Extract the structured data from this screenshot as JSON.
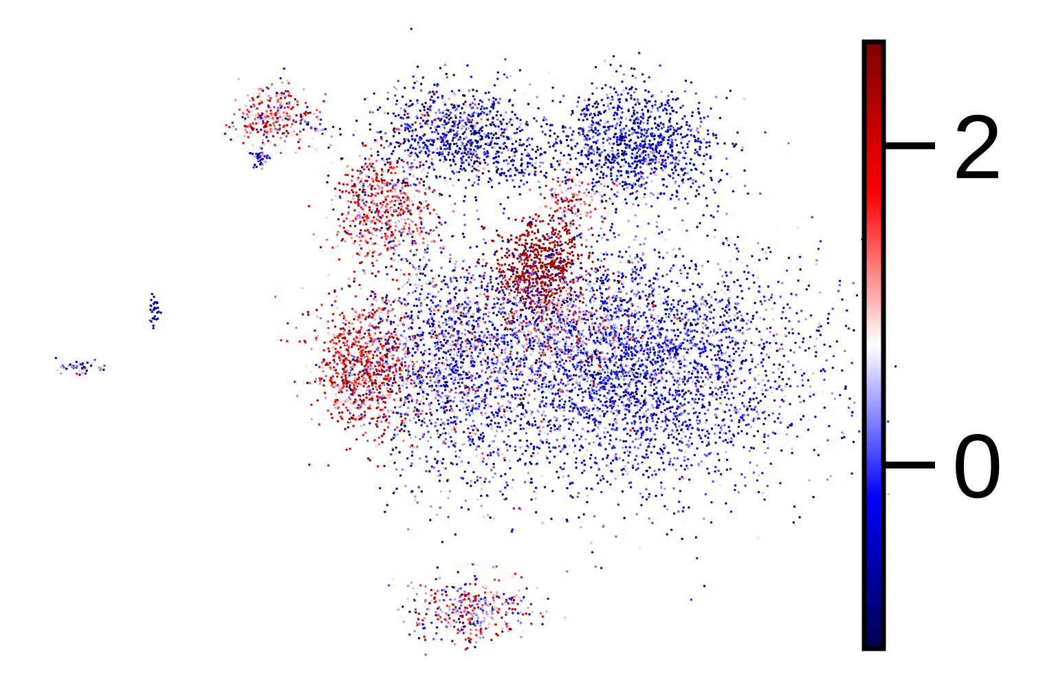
{
  "chart_data": {
    "type": "scatter",
    "title": "",
    "xlabel": "",
    "ylabel": "",
    "axes_visible": false,
    "grid": false,
    "colormap": "seismic",
    "colormap_stops": [
      "#00004c",
      "#0000ff",
      "#ffffff",
      "#ff0000",
      "#7f0000"
    ],
    "color_range": [
      -1.15,
      2.65
    ],
    "colorbar": {
      "position": "right",
      "ticks": [
        0,
        2
      ],
      "tick_labels": [
        "0",
        "2"
      ]
    },
    "clusters": [
      {
        "id": "top-left-island",
        "center": [
          -8.9,
          6.9
        ],
        "spread": [
          0.55,
          0.35
        ],
        "n": 320,
        "mean": 1.2,
        "sd": 0.9
      },
      {
        "id": "top-left-tail",
        "center": [
          -7.6,
          6.6
        ],
        "spread": [
          0.5,
          0.12
        ],
        "n": 40,
        "mean": 0.6,
        "sd": 0.9
      },
      {
        "id": "top-left-sub",
        "center": [
          -9.3,
          6.0
        ],
        "spread": [
          0.15,
          0.12
        ],
        "n": 45,
        "mean": -0.2,
        "sd": 0.6
      },
      {
        "id": "top-middle-upper",
        "center": [
          -3.3,
          6.5
        ],
        "spread": [
          1.2,
          0.55
        ],
        "n": 900,
        "mean": -0.3,
        "sd": 0.9
      },
      {
        "id": "top-middle-lower",
        "center": [
          -5.5,
          4.9
        ],
        "spread": [
          0.75,
          0.55
        ],
        "n": 650,
        "mean": 1.4,
        "sd": 0.9
      },
      {
        "id": "top-middle-bridge",
        "center": [
          -1.4,
          5.9
        ],
        "spread": [
          0.6,
          0.25
        ],
        "n": 80,
        "mean": -0.6,
        "sd": 0.5
      },
      {
        "id": "top-right",
        "center": [
          2.3,
          6.3
        ],
        "spread": [
          1.3,
          0.6
        ],
        "n": 1100,
        "mean": -0.4,
        "sd": 0.6
      },
      {
        "id": "top-right-arm",
        "center": [
          0.4,
          5.1
        ],
        "spread": [
          0.55,
          0.3
        ],
        "n": 150,
        "mean": 1.3,
        "sd": 0.8
      },
      {
        "id": "bright-center",
        "center": [
          -0.6,
          3.6
        ],
        "spread": [
          0.75,
          0.55
        ],
        "n": 700,
        "mean": 2.5,
        "sd": 0.35
      },
      {
        "id": "main-left",
        "center": [
          -6.0,
          1.6
        ],
        "spread": [
          0.75,
          0.75
        ],
        "n": 900,
        "mean": 1.8,
        "sd": 0.8
      },
      {
        "id": "main-center",
        "center": [
          -3.3,
          1.6
        ],
        "spread": [
          1.3,
          1.3
        ],
        "n": 1700,
        "mean": 0.1,
        "sd": 0.8
      },
      {
        "id": "main-right",
        "center": [
          2.4,
          1.5
        ],
        "spread": [
          2.6,
          1.35
        ],
        "n": 3800,
        "mean": -0.15,
        "sd": 0.6
      },
      {
        "id": "main-mid-band",
        "center": [
          0.2,
          2.3
        ],
        "spread": [
          1.2,
          0.5
        ],
        "n": 500,
        "mean": 0.7,
        "sd": 0.8
      },
      {
        "id": "small-left-top",
        "center": [
          -12.5,
          2.7
        ],
        "spread": [
          0.12,
          0.2
        ],
        "n": 30,
        "mean": -0.5,
        "sd": 0.5
      },
      {
        "id": "small-left-bottom",
        "center": [
          -14.8,
          1.5
        ],
        "spread": [
          0.35,
          0.08
        ],
        "n": 45,
        "mean": 0.0,
        "sd": 0.7
      },
      {
        "id": "bottom",
        "center": [
          -2.8,
          -3.7
        ],
        "spread": [
          1.0,
          0.35
        ],
        "n": 420,
        "mean": 0.9,
        "sd": 1.0
      }
    ],
    "xlim": [
      -16.0,
      8.5
    ],
    "ylim": [
      -4.8,
      8.5
    ]
  }
}
